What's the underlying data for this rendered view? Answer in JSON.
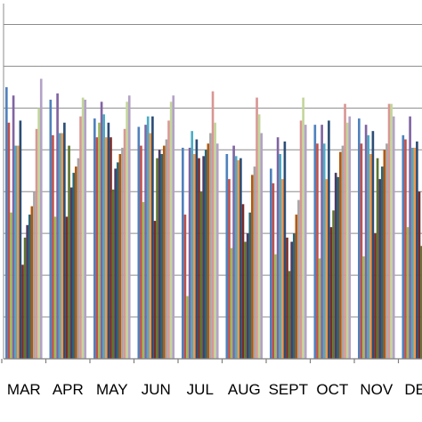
{
  "chart_data": {
    "type": "bar",
    "title": "",
    "xlabel": "",
    "ylabel": "",
    "ylim": [
      0,
      17
    ],
    "grid": true,
    "legend": "none",
    "categories": [
      "MAR",
      "APR",
      "MAY",
      "JUN",
      "JUL",
      "AUG",
      "SEPT",
      "OCT",
      "NOV",
      "DEC"
    ],
    "series": [
      {
        "color": "#4F81BD",
        "values": [
          13.0,
          12.4,
          11.5,
          11.1,
          10.1,
          9.8,
          9.1,
          11.2,
          11.5,
          10.7
        ]
      },
      {
        "color": "#C0504D",
        "values": [
          11.3,
          10.7,
          10.6,
          10.2,
          6.9,
          8.6,
          8.4,
          10.3,
          10.3,
          10.5
        ]
      },
      {
        "color": "#9BBB59",
        "values": [
          7.0,
          6.8,
          11.3,
          7.5,
          3.0,
          5.3,
          5.0,
          4.8,
          4.9,
          6.3
        ]
      },
      {
        "color": "#8064A2",
        "values": [
          12.6,
          12.7,
          12.3,
          11.2,
          10.1,
          10.2,
          10.6,
          11.2,
          11.2,
          11.6
        ]
      },
      {
        "color": "#4BACC6",
        "values": [
          10.2,
          10.8,
          11.7,
          11.6,
          10.9,
          9.7,
          9.8,
          10.3,
          10.7,
          10.1
        ]
      },
      {
        "color": "#F79646",
        "values": [
          10.2,
          10.8,
          10.6,
          10.8,
          9.8,
          9.5,
          8.6,
          8.6,
          9.8,
          10.1
        ]
      },
      {
        "color": "#2C4D75",
        "values": [
          11.4,
          11.3,
          11.3,
          11.6,
          10.5,
          9.6,
          10.4,
          11.4,
          10.9,
          10.4
        ]
      },
      {
        "color": "#772C2A",
        "values": [
          4.5,
          6.8,
          10.6,
          6.6,
          9.6,
          7.4,
          5.8,
          6.3,
          6.0,
          8.0
        ]
      },
      {
        "color": "#5F7530",
        "values": [
          5.8,
          10.2,
          8.1,
          9.6,
          8.0,
          5.6,
          4.2,
          7.1,
          9.6,
          5.4
        ]
      },
      {
        "color": "#4D3B62",
        "values": [
          6.4,
          8.2,
          9.1,
          10.0,
          9.7,
          6.0,
          5.6,
          8.9,
          8.6,
          7.6
        ]
      },
      {
        "color": "#276A7C",
        "values": [
          6.9,
          8.9,
          9.4,
          9.8,
          10.0,
          7.0,
          6.0,
          8.7,
          9.2,
          8.0
        ]
      },
      {
        "color": "#B65708",
        "values": [
          7.3,
          9.2,
          9.8,
          10.2,
          10.3,
          8.8,
          6.9,
          9.9,
          10.0,
          8.4
        ]
      },
      {
        "color": "#A5A5A5",
        "values": [
          8.0,
          9.6,
          10.1,
          10.5,
          10.8,
          9.2,
          7.6,
          10.2,
          10.3,
          8.9
        ]
      },
      {
        "color": "#D99694",
        "values": [
          11.0,
          11.6,
          11.0,
          11.4,
          12.8,
          12.5,
          11.4,
          12.2,
          12.2,
          11.1
        ]
      },
      {
        "color": "#C3D69B",
        "values": [
          12.0,
          12.5,
          12.3,
          12.3,
          11.3,
          11.7,
          12.5,
          11.3,
          12.2,
          10.8
        ]
      },
      {
        "color": "#B3A2C7",
        "values": [
          13.4,
          12.4,
          12.6,
          12.6,
          10.3,
          10.8,
          11.2,
          11.6,
          11.6,
          11.1
        ]
      }
    ]
  }
}
